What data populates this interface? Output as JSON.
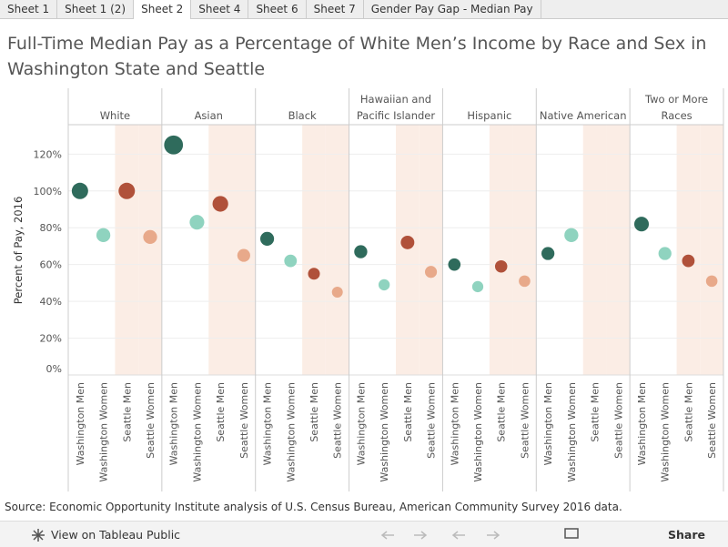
{
  "tabs": [
    "Sheet 1",
    "Sheet 1 (2)",
    "Sheet 2",
    "Sheet 4",
    "Sheet 6",
    "Sheet 7",
    "Gender Pay Gap - Median Pay"
  ],
  "active_tab": "Sheet 2",
  "chart_data": {
    "type": "dot",
    "title": "Full-Time Median Pay as a Percentage of White Men’s Income by Race and Sex in Washington State and Seattle",
    "y_label": "Percent of Pay, 2016",
    "categories": [
      "White",
      "Asian",
      "Black",
      "Hawaiian and Pacific Islander",
      "Hispanic",
      "Native American",
      "Two or More Races"
    ],
    "series": [
      {
        "name": "Washington Men",
        "color": "#2f6b5c",
        "values": [
          100,
          125,
          74,
          67,
          60,
          66,
          82
        ]
      },
      {
        "name": "Washington Women",
        "color": "#8fd3bf",
        "values": [
          76,
          83,
          62,
          49,
          48,
          76,
          66
        ]
      },
      {
        "name": "Seattle Men",
        "color": "#b0513a",
        "values": [
          100,
          93,
          55,
          72,
          59,
          null,
          62
        ]
      },
      {
        "name": "Seattle Women",
        "color": "#e8a98a",
        "values": [
          75,
          65,
          45,
          56,
          51,
          null,
          51
        ]
      }
    ],
    "ylim": [
      0,
      136
    ],
    "yticks": [
      {
        "value": 0,
        "label": "0%"
      },
      {
        "value": 20,
        "label": "20%"
      },
      {
        "value": 40,
        "label": "40%"
      },
      {
        "value": 60,
        "label": "60%"
      },
      {
        "value": 80,
        "label": "80%"
      },
      {
        "value": 100,
        "label": "100%"
      },
      {
        "value": 120,
        "label": "120%"
      }
    ],
    "grid": true,
    "source": "Source: Economic Opportunity Institute analysis of U.S. Census Bureau, American Community Survey 2016 data."
  },
  "footer": {
    "view": "View on Tableau Public",
    "share": "Share"
  }
}
